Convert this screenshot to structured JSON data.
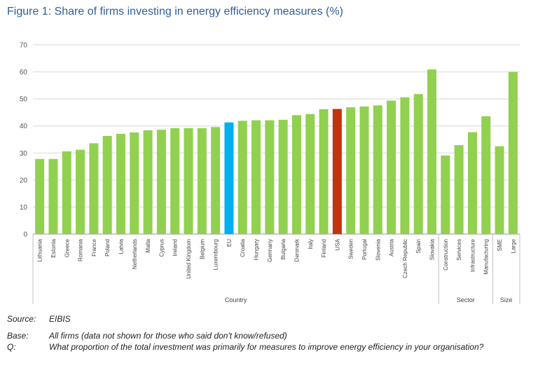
{
  "figure_title": "Figure 1: Share of firms investing in energy efficiency measures (%)",
  "chart_data": {
    "type": "bar",
    "title": "Figure 1: Share of firms investing in energy efficiency measures (%)",
    "ylim": [
      0,
      70
    ],
    "yticks": [
      0,
      10,
      20,
      30,
      40,
      50,
      60,
      70
    ],
    "grid": true,
    "categories": [
      "Lithuania",
      "Estonia",
      "Greece",
      "Romania",
      "France",
      "Poland",
      "Latvia",
      "Netherlands",
      "Malta",
      "Cyprus",
      "Ireland",
      "United Kingdom",
      "Belgium",
      "Luxembourg",
      "EU",
      "Croatia",
      "Hungary",
      "Germany",
      "Bulgaria",
      "Denmark",
      "Italy",
      "Finland",
      "USA",
      "Sweden",
      "Portugal",
      "Slovenia",
      "Austria",
      "Czech Republic",
      "Spain",
      "Slovakia",
      "Construction",
      "Services",
      "Infrastructure",
      "Manufacturing",
      "SME",
      "Large"
    ],
    "values": [
      27.8,
      27.8,
      30.6,
      31.2,
      33.6,
      36.3,
      37.1,
      37.6,
      38.4,
      38.6,
      39.2,
      39.2,
      39.2,
      39.6,
      41.3,
      41.9,
      42.1,
      42.1,
      42.3,
      44.0,
      44.4,
      46.2,
      46.3,
      46.9,
      47.2,
      47.6,
      49.4,
      50.6,
      51.8,
      60.9,
      29.1,
      32.9,
      37.7,
      43.6,
      32.5,
      60.0
    ],
    "groups": [
      {
        "label": "Country",
        "start": 0,
        "end": 29
      },
      {
        "label": "Sector",
        "start": 30,
        "end": 33
      },
      {
        "label": "Size",
        "start": 34,
        "end": 35
      }
    ],
    "colors": {
      "default": "#92d050",
      "EU": "#00b0f0",
      "USA": "#c0350f"
    }
  },
  "notes": [
    {
      "key": "Source:",
      "text": "EIBIS"
    },
    {
      "key": "Base:",
      "text": "All firms (data not shown for those who said don't know/refused)"
    },
    {
      "key": "Q:",
      "text": "What proportion of the total investment was primarily for measures to improve energy efficiency in your organisation?"
    }
  ]
}
